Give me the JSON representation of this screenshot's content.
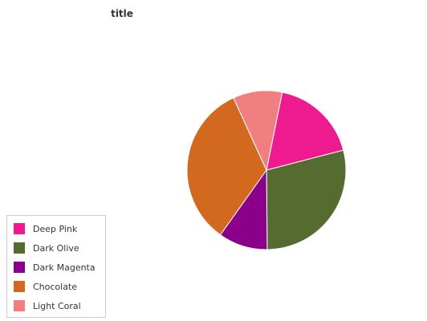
{
  "chart_data": {
    "type": "pie",
    "title": "title",
    "categories": [
      "Deep Pink",
      "Dark Olive",
      "Dark Magenta",
      "Chocolate",
      "Light Coral"
    ],
    "values": [
      16,
      26,
      9,
      30,
      9
    ],
    "colors": [
      "#ee1a8f",
      "#556b2f",
      "#8b008b",
      "#d2691e",
      "#f08080"
    ],
    "legend_position": "bottom-left"
  }
}
